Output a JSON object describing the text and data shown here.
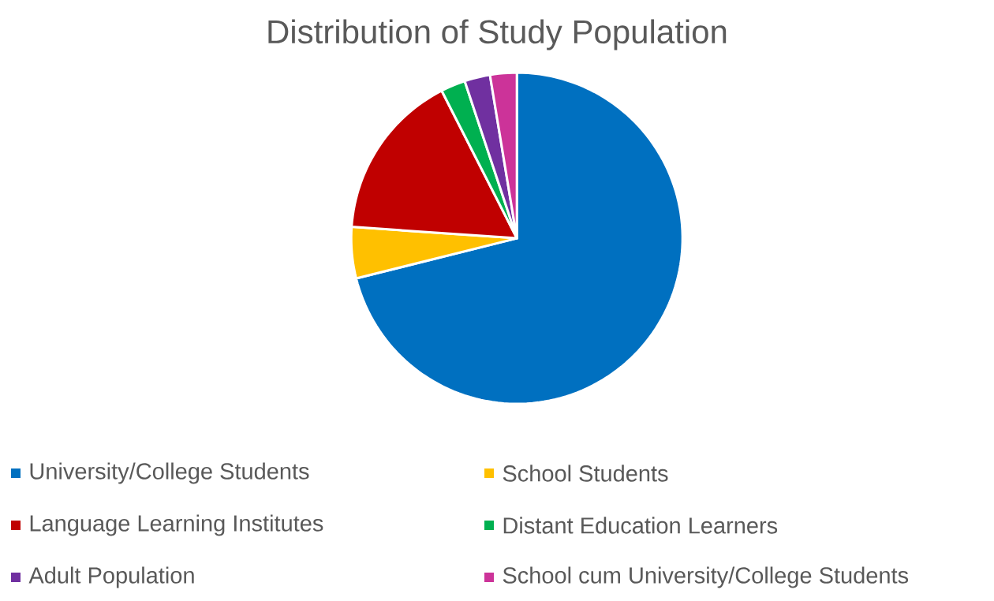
{
  "chart_data": {
    "type": "pie",
    "title": "Distribution of Study Population",
    "categories": [
      "University/College Students",
      "School Students",
      "Language Learning Institutes",
      "Distant Education Learners",
      "Adult Population",
      "School cum University/College Students"
    ],
    "values": [
      71.1,
      5.0,
      16.4,
      2.4,
      2.5,
      2.6
    ],
    "colors": [
      "#0070c0",
      "#ffc000",
      "#c00000",
      "#00b050",
      "#7030a0",
      "#cc3399"
    ],
    "legend": "bottom"
  }
}
